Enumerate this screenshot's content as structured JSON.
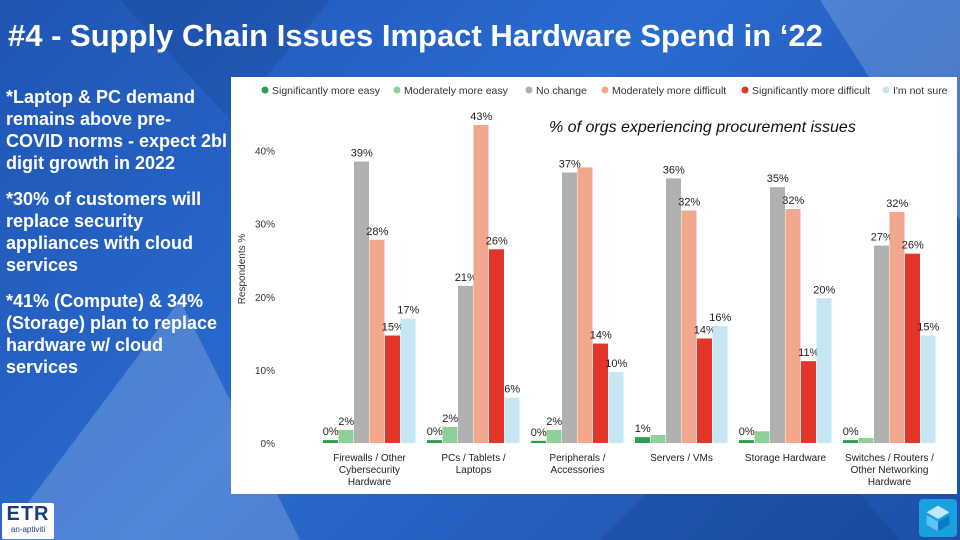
{
  "slide": {
    "title": "#4 - Supply Chain Issues Impact Hardware Spend in ‘22",
    "bullets": [
      "*Laptop & PC demand remains above pre-COVID norms  - expect 2bl digit growth in 2022",
      "*30% of customers will replace security appliances with cloud services",
      "*41% (Compute) & 34% (Storage) plan to replace hardware w/ cloud services"
    ],
    "logo_text": "ETR",
    "logo_subtext": "an-aptiviti"
  },
  "colors": {
    "background": "#2a6bd0",
    "series": [
      "#2e9e4f",
      "#8fcf9c",
      "#b0b0b0",
      "#f1a68e",
      "#e3362b",
      "#c6e6f3"
    ]
  },
  "chart_data": {
    "type": "bar",
    "title": "",
    "subtitle": "% of orgs experiencing procurement issues",
    "ylabel": "Respondents %",
    "xlabel": "",
    "ylim": [
      0,
      0.45
    ],
    "yticks": [
      0,
      0.1,
      0.2,
      0.3,
      0.4
    ],
    "ytick_labels": [
      "0%",
      "10%",
      "20%",
      "30%",
      "40%"
    ],
    "grid": false,
    "legend_position": "top",
    "categories": [
      [
        "Firewalls / Other",
        "Cybersecurity",
        "Hardware"
      ],
      [
        "PCs / Tablets /",
        "Laptops"
      ],
      [
        "Peripherals /",
        "Accessories"
      ],
      [
        "Servers / VMs"
      ],
      [
        "Storage Hardware"
      ],
      [
        "Switches / Routers /",
        "Other Networking",
        "Hardware"
      ]
    ],
    "series": [
      {
        "name": "Significantly more easy",
        "values": [
          0.004,
          0.004,
          0.003,
          0.008,
          0.004,
          0.004
        ],
        "labels": [
          "0%",
          "0%",
          "0%",
          "1%",
          "0%",
          "0%"
        ]
      },
      {
        "name": "Moderately more easy",
        "values": [
          0.018,
          0.022,
          0.018,
          0.011,
          0.016,
          0.007
        ],
        "labels": [
          "2%",
          "2%",
          "2%",
          "",
          "",
          ""
        ]
      },
      {
        "name": "No change",
        "values": [
          0.385,
          0.215,
          0.37,
          0.362,
          0.35,
          0.27
        ],
        "labels": [
          "39%",
          "21%",
          "37%",
          "36%",
          "35%",
          "27%"
        ]
      },
      {
        "name": "Moderately more difficult",
        "values": [
          0.278,
          0.435,
          0.377,
          0.318,
          0.32,
          0.316
        ],
        "labels": [
          "28%",
          "43%",
          "",
          "32%",
          "32%",
          "32%"
        ]
      },
      {
        "name": "Significantly more difficult",
        "values": [
          0.147,
          0.265,
          0.136,
          0.143,
          0.112,
          0.259
        ],
        "labels": [
          "15%",
          "26%",
          "14%",
          "14%",
          "11%",
          "26%"
        ]
      },
      {
        "name": "I'm not sure",
        "values": [
          0.17,
          0.062,
          0.097,
          0.16,
          0.198,
          0.147
        ],
        "labels": [
          "17%",
          "6%",
          "10%",
          "16%",
          "20%",
          "15%"
        ]
      }
    ]
  }
}
